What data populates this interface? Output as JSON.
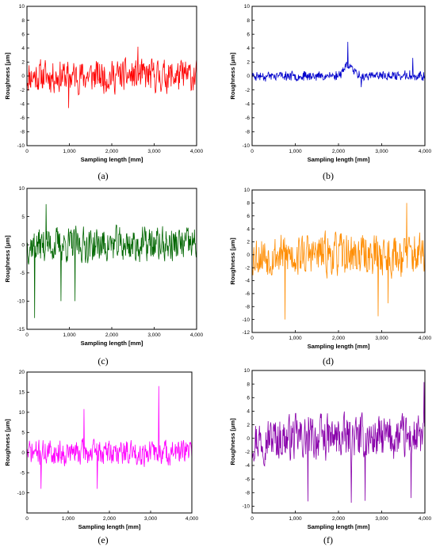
{
  "chart_data": [
    {
      "type": "line",
      "label": "(a)",
      "color": "#ff0000",
      "xlabel": "Sampling length [mm]",
      "ylabel": "Roughness [μm]",
      "xlim": [
        0,
        4000
      ],
      "ylim": [
        -10,
        10
      ],
      "xticks": [
        0,
        1000,
        2000,
        3000,
        4000
      ],
      "xtick_labels": [
        "0",
        "1,000",
        "2,000",
        "3,000",
        "4,000"
      ],
      "yticks": [
        -10,
        -8,
        -6,
        -4,
        -2,
        0,
        2,
        4,
        6,
        8,
        10
      ],
      "ytick_labels": [
        "-10",
        "-8",
        "-6",
        "-4",
        "-2",
        "0",
        "2",
        "4",
        "6",
        "8",
        "10"
      ],
      "series": [
        {
          "y_range": [
            -4.6,
            4.2
          ],
          "peaks": [
            [
              980,
              -4.6
            ],
            [
              2620,
              4.2
            ]
          ],
          "noise_amp": 3.0,
          "seed": 11
        }
      ]
    },
    {
      "type": "line",
      "label": "(b)",
      "color": "#0000cc",
      "xlabel": "Sampling length [mm]",
      "ylabel": "Roughness [μm]",
      "xlim": [
        0,
        4000
      ],
      "ylim": [
        -10,
        10
      ],
      "xticks": [
        0,
        1000,
        2000,
        3000,
        4000
      ],
      "xtick_labels": [
        "0",
        "1,000",
        "2,000",
        "3,000",
        "4,000"
      ],
      "yticks": [
        -10,
        -8,
        -6,
        -4,
        -2,
        0,
        2,
        4,
        6,
        8,
        10
      ],
      "ytick_labels": [
        "-10",
        "-8",
        "-6",
        "-4",
        "-2",
        "0",
        "2",
        "4",
        "6",
        "8",
        "10"
      ],
      "series": [
        {
          "y_range": [
            -1.8,
            4.9
          ],
          "peaks": [
            [
              2220,
              4.9
            ],
            [
              3720,
              2.6
            ],
            [
              2530,
              -1.6
            ]
          ],
          "noise_amp": 0.7,
          "seed": 23
        }
      ]
    },
    {
      "type": "line",
      "label": "(c)",
      "color": "#006600",
      "xlabel": "Sampling length [mm]",
      "ylabel": "Roughness [μm]",
      "xlim": [
        0,
        4000
      ],
      "ylim": [
        -15,
        10
      ],
      "xticks": [
        0,
        1000,
        2000,
        3000,
        4000
      ],
      "xtick_labels": [
        "0",
        "1,000",
        "2,000",
        "3,000",
        "4,000"
      ],
      "yticks": [
        -15,
        -10,
        -5,
        0,
        5,
        10
      ],
      "ytick_labels": [
        "-15",
        "-10",
        "-5",
        "0",
        "5",
        "10"
      ],
      "series": [
        {
          "y_range": [
            -13,
            7.2
          ],
          "peaks": [
            [
              180,
              -13
            ],
            [
              800,
              -10
            ],
            [
              450,
              7.2
            ],
            [
              1130,
              -10
            ]
          ],
          "noise_amp": 4.0,
          "seed": 37
        }
      ]
    },
    {
      "type": "line",
      "label": "(d)",
      "color": "#ff8c00",
      "xlabel": "Sampling length [mm]",
      "ylabel": "Roughness [μm]",
      "xlim": [
        0,
        4000
      ],
      "ylim": [
        -12,
        10
      ],
      "xticks": [
        0,
        1000,
        2000,
        3000,
        4000
      ],
      "xtick_labels": [
        "0",
        "1,000",
        "2,000",
        "3,000",
        "4,000"
      ],
      "yticks": [
        -12,
        -10,
        -8,
        -6,
        -4,
        -2,
        0,
        2,
        4,
        6,
        8,
        10
      ],
      "ytick_labels": [
        "-12",
        "-10",
        "-8",
        "-6",
        "-4",
        "-2",
        "0",
        "2",
        "4",
        "6",
        "8",
        "10"
      ],
      "series": [
        {
          "y_range": [
            -10,
            8
          ],
          "peaks": [
            [
              760,
              -10
            ],
            [
              2920,
              -9.5
            ],
            [
              3580,
              8
            ],
            [
              3150,
              -7.5
            ]
          ],
          "noise_amp": 4.2,
          "seed": 53
        }
      ]
    },
    {
      "type": "line",
      "label": "(e)",
      "color": "#ff00ff",
      "xlabel": "Sampling length [mm]",
      "ylabel": "Roughness [μm]",
      "xlim": [
        0,
        4000
      ],
      "ylim": [
        -15,
        20
      ],
      "xticks": [
        0,
        1000,
        2000,
        3000,
        4000
      ],
      "xtick_labels": [
        "0",
        "1,000",
        "2,000",
        "3,000",
        "4,000"
      ],
      "yticks": [
        -10,
        -5,
        0,
        5,
        10,
        15,
        20
      ],
      "ytick_labels": [
        "-10",
        "-5",
        "0",
        "5",
        "10",
        "15",
        "20"
      ],
      "series": [
        {
          "y_range": [
            -9,
            16.5
          ],
          "peaks": [
            [
              3200,
              16.5
            ],
            [
              1380,
              10.8
            ],
            [
              1700,
              -9
            ],
            [
              340,
              -9
            ]
          ],
          "noise_amp": 4.0,
          "seed": 71
        }
      ]
    },
    {
      "type": "line",
      "label": "(f)",
      "color": "#8800aa",
      "xlabel": "Sampling length [mm]",
      "ylabel": "Roughness [μm]",
      "xlim": [
        0,
        4000
      ],
      "ylim": [
        -11,
        10
      ],
      "xticks": [
        0,
        1000,
        2000,
        3000,
        4000
      ],
      "xtick_labels": [
        "0",
        "1,000",
        "2,000",
        "3,000",
        "4,000"
      ],
      "yticks": [
        -10,
        -8,
        -6,
        -4,
        -2,
        0,
        2,
        4,
        6,
        8,
        10
      ],
      "ytick_labels": [
        "-10",
        "-8",
        "-6",
        "-4",
        "-2",
        "0",
        "2",
        "4",
        "6",
        "8",
        "10"
      ],
      "series": [
        {
          "y_range": [
            -9.5,
            8.3
          ],
          "peaks": [
            [
              3980,
              8.3
            ],
            [
              1290,
              -9.3
            ],
            [
              2300,
              -9.5
            ],
            [
              2620,
              -9.2
            ],
            [
              3680,
              -8.8
            ]
          ],
          "noise_amp": 4.2,
          "seed": 97
        }
      ]
    }
  ]
}
